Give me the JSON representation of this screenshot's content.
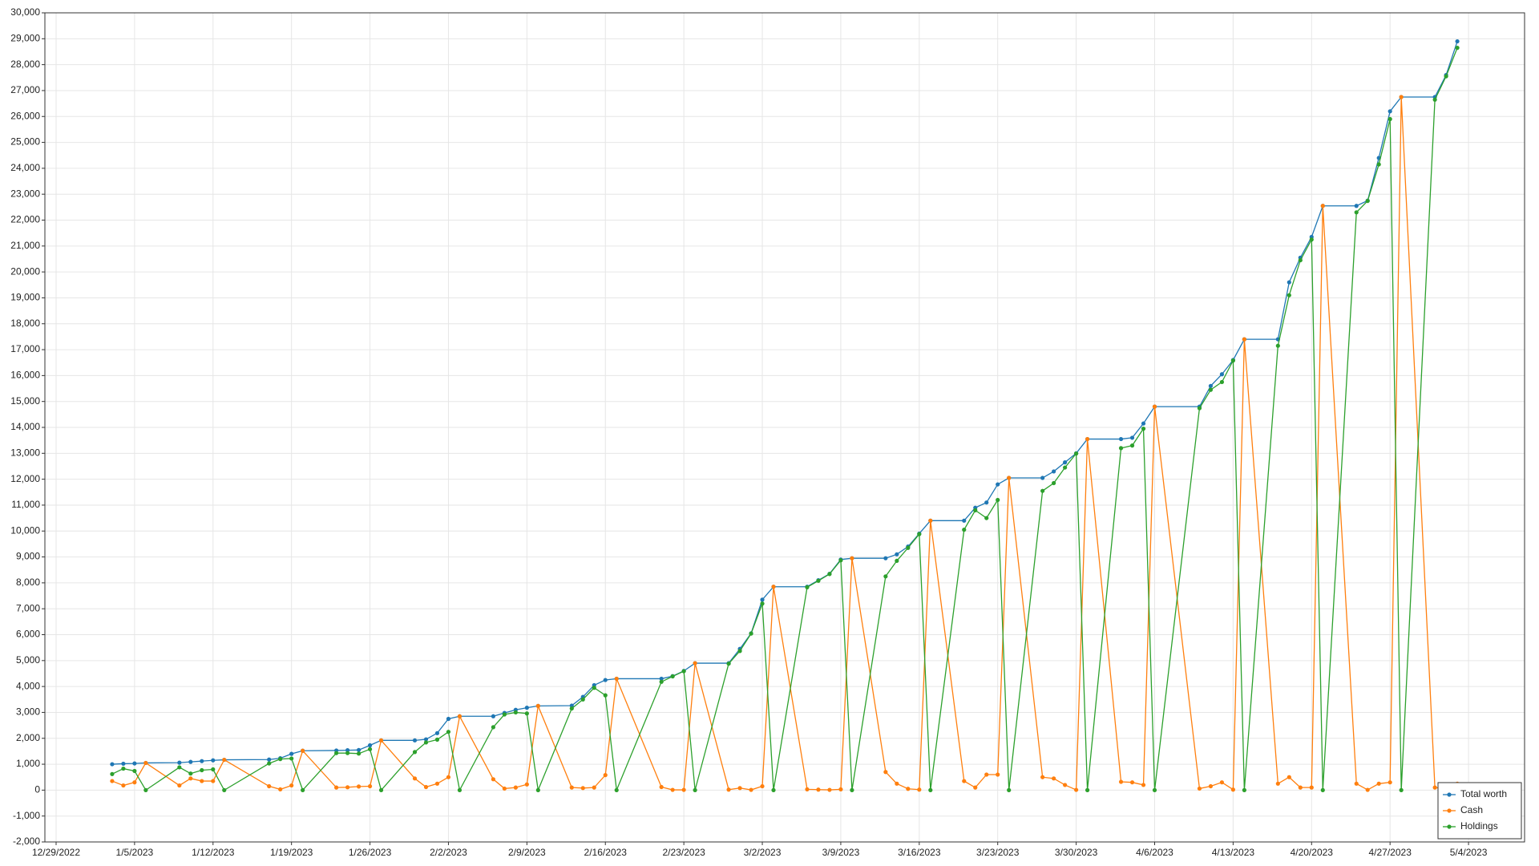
{
  "chart_data": {
    "type": "line",
    "x": [
      "1/3/2023",
      "1/4/2023",
      "1/5/2023",
      "1/6/2023",
      "1/9/2023",
      "1/10/2023",
      "1/11/2023",
      "1/12/2023",
      "1/13/2023",
      "1/17/2023",
      "1/18/2023",
      "1/19/2023",
      "1/20/2023",
      "1/23/2023",
      "1/24/2023",
      "1/25/2023",
      "1/26/2023",
      "1/27/2023",
      "1/30/2023",
      "1/31/2023",
      "2/1/2023",
      "2/2/2023",
      "2/3/2023",
      "2/6/2023",
      "2/7/2023",
      "2/8/2023",
      "2/9/2023",
      "2/10/2023",
      "2/13/2023",
      "2/14/2023",
      "2/15/2023",
      "2/16/2023",
      "2/17/2023",
      "2/21/2023",
      "2/22/2023",
      "2/23/2023",
      "2/24/2023",
      "2/27/2023",
      "2/28/2023",
      "3/1/2023",
      "3/2/2023",
      "3/3/2023",
      "3/6/2023",
      "3/7/2023",
      "3/8/2023",
      "3/9/2023",
      "3/10/2023",
      "3/13/2023",
      "3/14/2023",
      "3/15/2023",
      "3/16/2023",
      "3/17/2023",
      "3/20/2023",
      "3/21/2023",
      "3/22/2023",
      "3/23/2023",
      "3/24/2023",
      "3/27/2023",
      "3/28/2023",
      "3/29/2023",
      "3/30/2023",
      "3/31/2023",
      "4/3/2023",
      "4/4/2023",
      "4/5/2023",
      "4/6/2023",
      "4/10/2023",
      "4/11/2023",
      "4/12/2023",
      "4/13/2023",
      "4/14/2023",
      "4/17/2023",
      "4/18/2023",
      "4/19/2023",
      "4/20/2023",
      "4/21/2023",
      "4/24/2023",
      "4/25/2023",
      "4/26/2023",
      "4/27/2023",
      "4/28/2023",
      "5/1/2023",
      "5/2/2023",
      "5/3/2023"
    ],
    "series": [
      {
        "name": "Total worth",
        "color": "#1f77b4",
        "values": [
          1000,
          1020,
          1030,
          1050,
          1060,
          1090,
          1120,
          1150,
          1170,
          1180,
          1230,
          1400,
          1520,
          1530,
          1540,
          1550,
          1730,
          1920,
          1920,
          1960,
          2200,
          2750,
          2850,
          2850,
          2980,
          3100,
          3180,
          3250,
          3260,
          3600,
          4050,
          4250,
          4300,
          4300,
          4400,
          4600,
          4900,
          4900,
          5450,
          6050,
          7350,
          7850,
          7850,
          8100,
          8350,
          8900,
          8950,
          8950,
          9100,
          9400,
          9900,
          10400,
          10400,
          10900,
          11100,
          11800,
          12050,
          12050,
          12300,
          12650,
          13000,
          13550,
          13550,
          13600,
          14150,
          14800,
          14800,
          15600,
          16050,
          16600,
          17400,
          17400,
          19600,
          20550,
          21350,
          22550,
          22550,
          22750,
          24400,
          26200,
          26750,
          26750,
          27600,
          28900
        ]
      },
      {
        "name": "Cash",
        "color": "#ff7f0e",
        "values": [
          350,
          180,
          300,
          1050,
          180,
          450,
          350,
          350,
          1170,
          150,
          30,
          180,
          1520,
          100,
          110,
          140,
          150,
          1920,
          450,
          120,
          250,
          500,
          2850,
          420,
          60,
          100,
          220,
          3250,
          100,
          80,
          100,
          580,
          4300,
          120,
          10,
          10,
          4900,
          20,
          80,
          10,
          150,
          7850,
          30,
          20,
          10,
          30,
          8950,
          700,
          250,
          50,
          20,
          10400,
          350,
          100,
          600,
          600,
          12050,
          500,
          450,
          200,
          10,
          13550,
          320,
          300,
          200,
          14800,
          60,
          150,
          300,
          20,
          17400,
          250,
          500,
          100,
          100,
          22550,
          250,
          10,
          250,
          300,
          26750,
          100,
          50,
          250
        ]
      },
      {
        "name": "Holdings",
        "color": "#2ca02c",
        "values": [
          620,
          830,
          740,
          0,
          880,
          640,
          770,
          800,
          0,
          1030,
          1200,
          1220,
          0,
          1430,
          1430,
          1410,
          1580,
          0,
          1470,
          1840,
          1950,
          2250,
          0,
          2430,
          2920,
          3000,
          2960,
          0,
          3150,
          3500,
          3950,
          3660,
          0,
          4180,
          4390,
          4590,
          0,
          4880,
          5370,
          6040,
          7200,
          0,
          7830,
          8080,
          8340,
          8870,
          0,
          8250,
          8850,
          9350,
          9880,
          0,
          10050,
          10800,
          10500,
          11200,
          0,
          11550,
          11850,
          12450,
          12990,
          0,
          13200,
          13300,
          13950,
          0,
          14740,
          15450,
          15750,
          16580,
          0,
          17150,
          19100,
          20450,
          21250,
          0,
          22300,
          22740,
          24150,
          25900,
          0,
          26650,
          27550,
          28650
        ]
      }
    ],
    "xlim": [
      "12/28/2022",
      "5/9/2023"
    ],
    "xticks": [
      "12/29/2022",
      "1/5/2023",
      "1/12/2023",
      "1/19/2023",
      "1/26/2023",
      "2/2/2023",
      "2/9/2023",
      "2/16/2023",
      "2/23/2023",
      "3/2/2023",
      "3/9/2023",
      "3/16/2023",
      "3/23/2023",
      "3/30/2023",
      "4/6/2023",
      "4/13/2023",
      "4/20/2023",
      "4/27/2023",
      "5/4/2023"
    ],
    "ylim": [
      -2000,
      30000
    ],
    "yticks": [
      {
        "value": -2000,
        "label": "-2,000"
      },
      {
        "value": -1000,
        "label": "-1,000"
      },
      0,
      {
        "value": 1000,
        "label": "1,000"
      },
      {
        "value": 2000,
        "label": "2,000"
      },
      {
        "value": 3000,
        "label": "3,000"
      },
      {
        "value": 4000,
        "label": "4,000"
      },
      {
        "value": 5000,
        "label": "5,000"
      },
      {
        "value": 6000,
        "label": "6,000"
      },
      {
        "value": 7000,
        "label": "7,000"
      },
      {
        "value": 8000,
        "label": "8,000"
      },
      {
        "value": 9000,
        "label": "9,000"
      },
      {
        "value": 10000,
        "label": "10,000"
      },
      {
        "value": 11000,
        "label": "11,000"
      },
      {
        "value": 12000,
        "label": "12,000"
      },
      {
        "value": 13000,
        "label": "13,000"
      },
      {
        "value": 14000,
        "label": "14,000"
      },
      {
        "value": 15000,
        "label": "15,000"
      },
      {
        "value": 16000,
        "label": "16,000"
      },
      {
        "value": 17000,
        "label": "17,000"
      },
      {
        "value": 18000,
        "label": "18,000"
      },
      {
        "value": 19000,
        "label": "19,000"
      },
      {
        "value": 20000,
        "label": "20,000"
      },
      {
        "value": 21000,
        "label": "21,000"
      },
      {
        "value": 22000,
        "label": "22,000"
      },
      {
        "value": 23000,
        "label": "23,000"
      },
      {
        "value": 24000,
        "label": "24,000"
      },
      {
        "value": 25000,
        "label": "25,000"
      },
      {
        "value": 26000,
        "label": "26,000"
      },
      {
        "value": 27000,
        "label": "27,000"
      },
      {
        "value": 28000,
        "label": "28,000"
      },
      {
        "value": 29000,
        "label": "29,000"
      },
      {
        "value": 30000,
        "label": "30,000"
      }
    ],
    "grid": true,
    "legend": "bottom-right"
  }
}
